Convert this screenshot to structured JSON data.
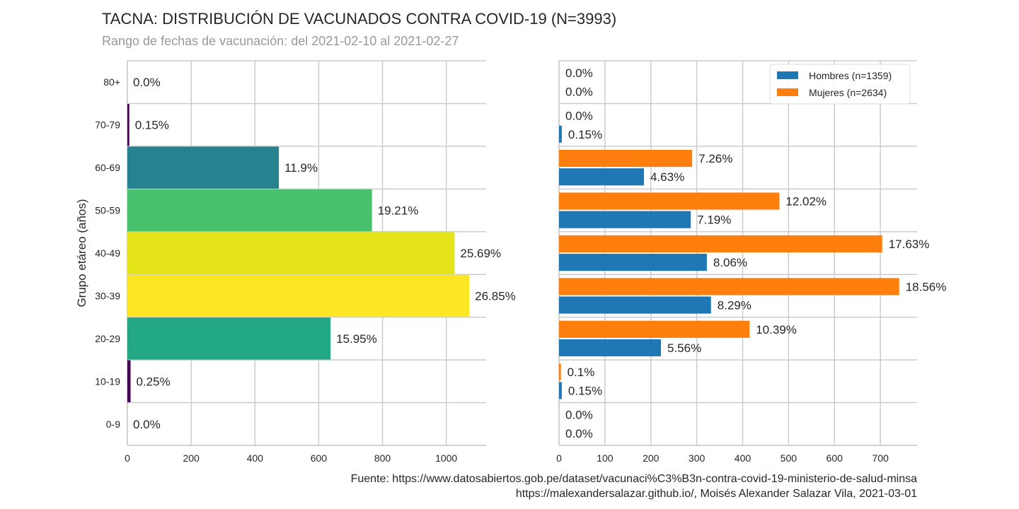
{
  "header": {
    "title": "TACNA: DISTRIBUCIÓN DE VACUNADOS CONTRA COVID-19 (N=3993)",
    "subtitle": "Rango de fechas de vacunación: del 2021-02-10 al 2021-02-27"
  },
  "footer": {
    "source_line": "Fuente: https://www.datosabiertos.gob.pe/dataset/vacunaci%C3%B3n-contra-covid-19-ministerio-de-salud-minsa",
    "credit_line": "https://malexandersalazar.github.io/, Moisés Alexander Salazar Vila, 2021-03-01"
  },
  "chart_data": [
    {
      "type": "bar",
      "orientation": "horizontal",
      "ylabel": "Grupo etáreo (años)",
      "xlabel": "",
      "categories": [
        "0-9",
        "10-19",
        "20-29",
        "30-39",
        "40-49",
        "50-59",
        "60-69",
        "70-79",
        "80+"
      ],
      "values": [
        0,
        10,
        637,
        1072,
        1026,
        767,
        475,
        6,
        0
      ],
      "labels": [
        "0.0%",
        "0.25%",
        "15.95%",
        "26.85%",
        "25.69%",
        "19.21%",
        "11.9%",
        "0.15%",
        "0.0%"
      ],
      "colors": [
        "#440154",
        "#440154",
        "#22a884",
        "#fde725",
        "#e5e419",
        "#4ac16d",
        "#26828e",
        "#440154",
        "#440154"
      ],
      "xlim": [
        0,
        1125
      ],
      "xticks": [
        0,
        200,
        400,
        600,
        800,
        1000
      ],
      "grid": true
    },
    {
      "type": "bar",
      "orientation": "horizontal",
      "xlabel": "",
      "ylabel": "",
      "categories": [
        "0-9",
        "10-19",
        "20-29",
        "30-39",
        "40-49",
        "50-59",
        "60-69",
        "70-79",
        "80+"
      ],
      "series": [
        {
          "name": "Hombres (n=1359)",
          "color": "#1f77b4",
          "values": [
            0,
            6,
            222,
            331,
            322,
            287,
            185,
            6,
            0
          ],
          "labels": [
            "0.0%",
            "0.15%",
            "5.56%",
            "8.29%",
            "8.06%",
            "7.19%",
            "4.63%",
            "0.15%",
            "0.0%"
          ]
        },
        {
          "name": "Mujeres (n=2634)",
          "color": "#ff7f0e",
          "values": [
            0,
            4,
            415,
            741,
            704,
            480,
            290,
            0,
            0
          ],
          "labels": [
            "0.0%",
            "0.1%",
            "10.39%",
            "18.56%",
            "17.63%",
            "12.02%",
            "7.26%",
            "0.0%",
            "0.0%"
          ]
        }
      ],
      "xlim": [
        0,
        780
      ],
      "xticks": [
        0,
        100,
        200,
        300,
        400,
        500,
        600,
        700
      ],
      "legend": "top-right",
      "grid": true
    }
  ]
}
